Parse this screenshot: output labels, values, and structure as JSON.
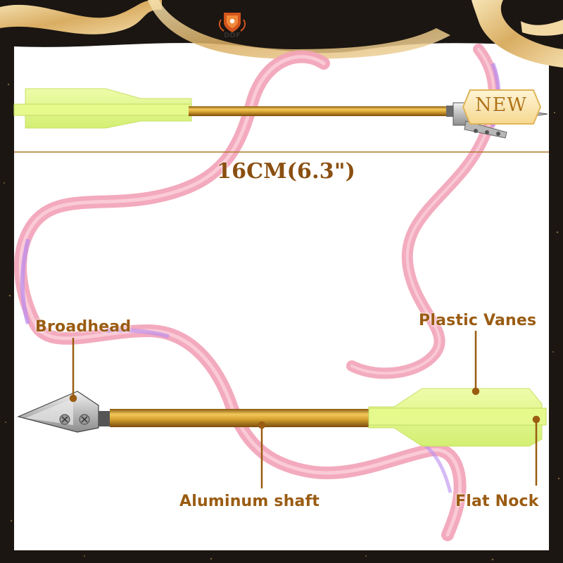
{
  "brand": {
    "name": "DDF"
  },
  "badge": {
    "text": "NEW"
  },
  "dimension": {
    "text": "16CM(6.3\")"
  },
  "labels": {
    "broadhead": "Broadhead",
    "plastic_vanes": "Plastic Vanes",
    "aluminum_shaft": "Aluminum shaft",
    "flat_nock": "Flat Nock"
  },
  "colors": {
    "label_text": "#9a5c12",
    "vane": "#e2f78a",
    "shaft_gold": "#d9a532",
    "ribbon_pink": "#f2a3b8",
    "ribbon_purple": "#b98cf0",
    "frame_gold": "#e8c78f",
    "blade_steel": "#c8c8c8"
  },
  "icons": [
    "shield-crest-icon",
    "new-badge-icon"
  ]
}
